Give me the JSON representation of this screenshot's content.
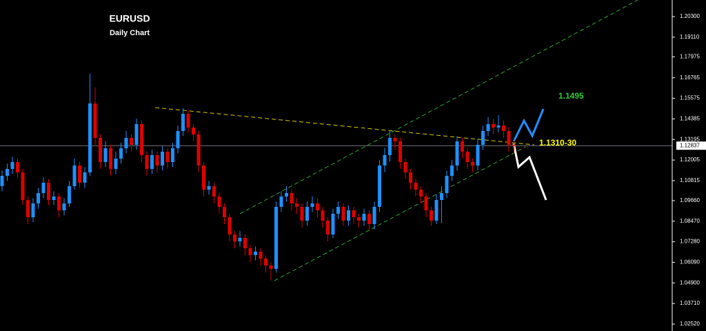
{
  "chart_data": {
    "type": "candlestick",
    "title": "EURUSD",
    "subtitle": "Daily Chart",
    "open": [
      1.105,
      1.11093,
      1.11491,
      1.1189,
      1.11292,
      1.09697,
      1.087,
      1.09498,
      1.10096,
      1.10694,
      1.09697,
      1.09896,
      1.09099,
      1.09498,
      1.10495,
      1.11691,
      1.10694,
      1.11292,
      1.15279,
      1.13286,
      1.1189,
      1.12688,
      1.11491,
      1.12089,
      1.12688,
      1.13286,
      1.12887,
      1.14083,
      1.12289,
      1.11491,
      1.12289,
      1.11691,
      1.12488,
      1.1189,
      1.12688,
      1.13684,
      1.14681,
      1.13884,
      1.13485,
      1.11691,
      1.10295,
      1.10495,
      1.09896,
      1.09298,
      1.087,
      1.07704,
      1.07305,
      1.07504,
      1.06906,
      1.06507,
      1.06707,
      1.06308,
      1.05909,
      1.0571,
      1.09298,
      1.09896,
      1.10096,
      1.09498,
      1.09298,
      1.08501,
      1.09298,
      1.09498,
      1.09099,
      1.08501,
      1.07704,
      1.089,
      1.09298,
      1.08501,
      1.09099,
      1.087,
      1.08501,
      1.089,
      1.08302,
      1.09298,
      1.11691,
      1.12289,
      1.13286,
      1.13086,
      1.1189,
      1.11292,
      1.10694,
      1.10295,
      1.09896,
      1.09099,
      1.08501,
      1.09697,
      1.10096,
      1.11093,
      1.11691,
      1.13086,
      1.12488,
      1.1189,
      1.11691,
      1.12887,
      1.13684,
      1.14083,
      1.13884,
      1.14003,
      1.13684,
      1.12887
    ],
    "high": [
      1.114,
      1.118,
      1.122,
      1.121,
      1.115,
      1.099,
      1.098,
      1.104,
      1.11,
      1.109,
      1.102,
      1.101,
      1.098,
      1.108,
      1.121,
      1.119,
      1.116,
      1.17,
      1.162,
      1.135,
      1.131,
      1.129,
      1.125,
      1.13,
      1.137,
      1.135,
      1.144,
      1.143,
      1.125,
      1.126,
      1.125,
      1.128,
      1.127,
      1.13,
      1.14,
      1.15,
      1.149,
      1.141,
      1.137,
      1.119,
      1.108,
      1.107,
      1.101,
      1.095,
      1.089,
      1.079,
      1.079,
      1.077,
      1.071,
      1.07,
      1.069,
      1.065,
      1.061,
      1.096,
      1.102,
      1.105,
      1.103,
      1.098,
      1.095,
      1.096,
      1.099,
      1.098,
      1.093,
      1.087,
      1.092,
      1.096,
      1.095,
      1.094,
      1.093,
      1.089,
      1.092,
      1.091,
      1.096,
      1.12,
      1.127,
      1.137,
      1.135,
      1.133,
      1.121,
      1.115,
      1.109,
      1.105,
      1.101,
      1.093,
      1.1,
      1.105,
      1.114,
      1.12,
      1.134,
      1.133,
      1.127,
      1.121,
      1.132,
      1.14,
      1.145,
      1.144,
      1.146,
      1.143,
      1.139,
      1.132
    ],
    "low": [
      1.102,
      1.108,
      1.112,
      1.11,
      1.094,
      1.083,
      1.084,
      1.092,
      1.098,
      1.094,
      1.094,
      1.087,
      1.088,
      1.093,
      1.103,
      1.104,
      1.104,
      1.111,
      1.129,
      1.115,
      1.116,
      1.111,
      1.112,
      1.118,
      1.124,
      1.125,
      1.126,
      1.119,
      1.111,
      1.112,
      1.113,
      1.114,
      1.115,
      1.116,
      1.124,
      1.134,
      1.136,
      1.131,
      1.113,
      1.099,
      1.1,
      1.095,
      1.089,
      1.083,
      1.073,
      1.069,
      1.07,
      1.065,
      1.061,
      1.062,
      1.059,
      1.055,
      1.0505,
      1.055,
      1.09,
      1.096,
      1.091,
      1.089,
      1.081,
      1.082,
      1.09,
      1.087,
      1.081,
      1.073,
      1.075,
      1.086,
      1.082,
      1.082,
      1.083,
      1.081,
      1.082,
      1.079,
      1.08,
      1.09,
      1.113,
      1.119,
      1.126,
      1.115,
      1.109,
      1.103,
      1.099,
      1.095,
      1.087,
      1.082,
      1.083,
      1.0835,
      1.098,
      1.108,
      1.114,
      1.121,
      1.115,
      1.113,
      1.114,
      1.126,
      1.134,
      1.135,
      1.136,
      1.133,
      1.125,
      1.124
    ],
    "close": [
      1.11093,
      1.11491,
      1.1189,
      1.11292,
      1.09697,
      1.087,
      1.09498,
      1.10096,
      1.10694,
      1.09697,
      1.09896,
      1.09099,
      1.09498,
      1.10495,
      1.11691,
      1.10694,
      1.11292,
      1.15279,
      1.13286,
      1.1189,
      1.12688,
      1.11491,
      1.12089,
      1.12688,
      1.13286,
      1.12887,
      1.14083,
      1.12289,
      1.11491,
      1.12289,
      1.11691,
      1.12488,
      1.1189,
      1.12688,
      1.13684,
      1.14681,
      1.13884,
      1.13485,
      1.11691,
      1.10295,
      1.10495,
      1.09896,
      1.09298,
      1.087,
      1.07704,
      1.07305,
      1.07504,
      1.06906,
      1.06507,
      1.06707,
      1.06308,
      1.05909,
      1.0571,
      1.09298,
      1.09896,
      1.10096,
      1.09498,
      1.09298,
      1.08501,
      1.09298,
      1.09498,
      1.09099,
      1.08501,
      1.07704,
      1.089,
      1.09298,
      1.08501,
      1.09099,
      1.087,
      1.08501,
      1.089,
      1.08302,
      1.09298,
      1.11691,
      1.12289,
      1.13286,
      1.13086,
      1.1189,
      1.11292,
      1.10694,
      1.10295,
      1.09896,
      1.09099,
      1.08501,
      1.09697,
      1.10096,
      1.11093,
      1.11691,
      1.13086,
      1.12488,
      1.1189,
      1.11691,
      1.12887,
      1.13684,
      1.14083,
      1.13884,
      1.14003,
      1.13684,
      1.12887,
      1.12837
    ],
    "up_color": "#1e90ff",
    "down_color": "#e00000",
    "ylim": [
      1.0212,
      1.2126
    ],
    "yticks": [
      {
        "value": 1.203,
        "label": "1.20300"
      },
      {
        "value": 1.1911,
        "label": "1.19110"
      },
      1.17975,
      1.16765,
      1.15575,
      1.14385,
      1.13195,
      1.12005,
      1.10815,
      {
        "value": 1.0966,
        "label": "1.09660"
      },
      {
        "value": 1.0847,
        "label": "1.08470"
      },
      {
        "value": 1.0728,
        "label": "1.07280"
      },
      {
        "value": 1.0609,
        "label": "1.06090"
      },
      {
        "value": 1.049,
        "label": "1.04900"
      },
      {
        "value": 1.0371,
        "label": "1.03710"
      },
      {
        "value": 1.0252,
        "label": "1.02520"
      }
    ],
    "last_price": 1.12837,
    "annotations": [
      "1.1495",
      "1.1310-30"
    ]
  }
}
